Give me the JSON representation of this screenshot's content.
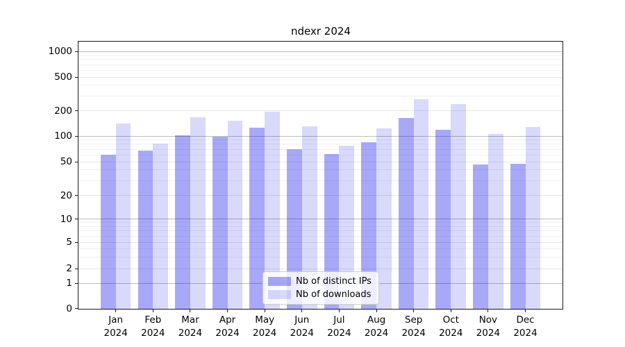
{
  "page": {
    "background": "#ffffff"
  },
  "chart_data": {
    "type": "bar",
    "title": "ndexr 2024",
    "categories": [
      "Jan",
      "Feb",
      "Mar",
      "Apr",
      "May",
      "Jun",
      "Jul",
      "Aug",
      "Sep",
      "Oct",
      "Nov",
      "Dec"
    ],
    "x_tick_year": "2024",
    "series": [
      {
        "name": "Nb of distinct IPs",
        "color": "rgba(0,0,238,0.34)",
        "values": [
          60,
          67,
          101,
          99,
          125,
          70,
          61,
          85,
          165,
          118,
          46,
          47
        ]
      },
      {
        "name": "Nb of downloads",
        "color": "rgba(0,0,238,0.15)",
        "values": [
          140,
          82,
          168,
          153,
          196,
          130,
          77,
          124,
          275,
          240,
          106,
          128
        ]
      }
    ],
    "y_axis": {
      "scale": "symlog",
      "tick_values": [
        0,
        1,
        2,
        5,
        10,
        20,
        50,
        100,
        200,
        500,
        1000
      ],
      "tick_labels": [
        "0",
        "1",
        "2",
        "5",
        "10",
        "20",
        "50",
        "100",
        "200",
        "500",
        "1000"
      ],
      "range": [
        0,
        1300
      ],
      "grid": true
    },
    "legend": {
      "position": "lower center",
      "entries": [
        "Nb of distinct IPs",
        "Nb of downloads"
      ]
    }
  }
}
